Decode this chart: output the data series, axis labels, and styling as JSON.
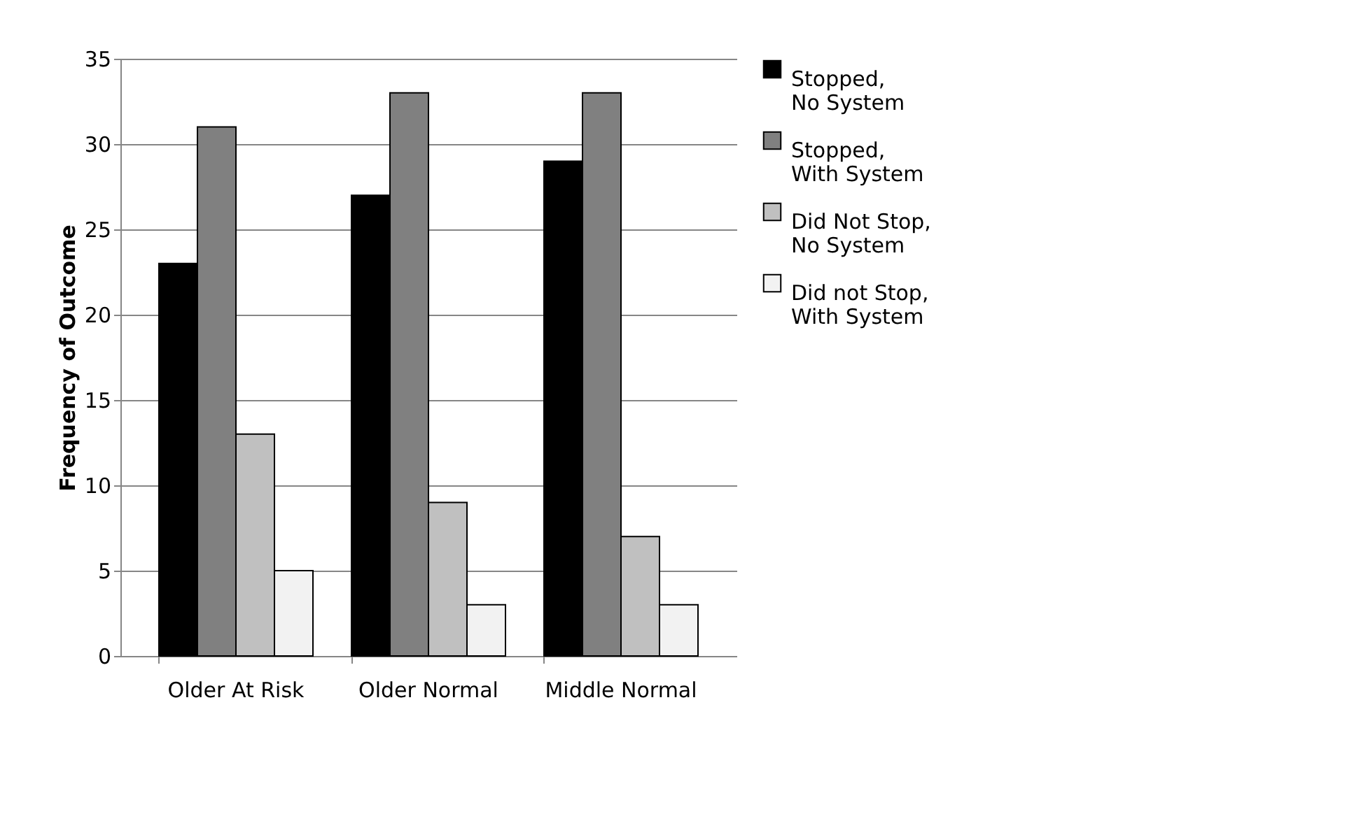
{
  "chart_data": {
    "type": "bar",
    "ylabel": "Frequency of Outcome",
    "categories": [
      "Older At Risk",
      "Older Normal",
      "Middle Normal"
    ],
    "series": [
      {
        "name": "Stopped, No System",
        "color": "#000000",
        "values": [
          23,
          27,
          29
        ]
      },
      {
        "name": "Stopped, With System",
        "color": "#808080",
        "values": [
          31,
          33,
          33
        ]
      },
      {
        "name": "Did Not Stop, No System",
        "color": "#c0c0c0",
        "values": [
          13,
          9,
          7
        ]
      },
      {
        "name": "Did not Stop, With System",
        "color": "#f2f2f2",
        "values": [
          5,
          3,
          3
        ]
      }
    ],
    "ylim": [
      0,
      35
    ],
    "yticks": [
      0,
      5,
      10,
      15,
      20,
      25,
      30,
      35
    ],
    "grid": "y",
    "legend": "right"
  }
}
